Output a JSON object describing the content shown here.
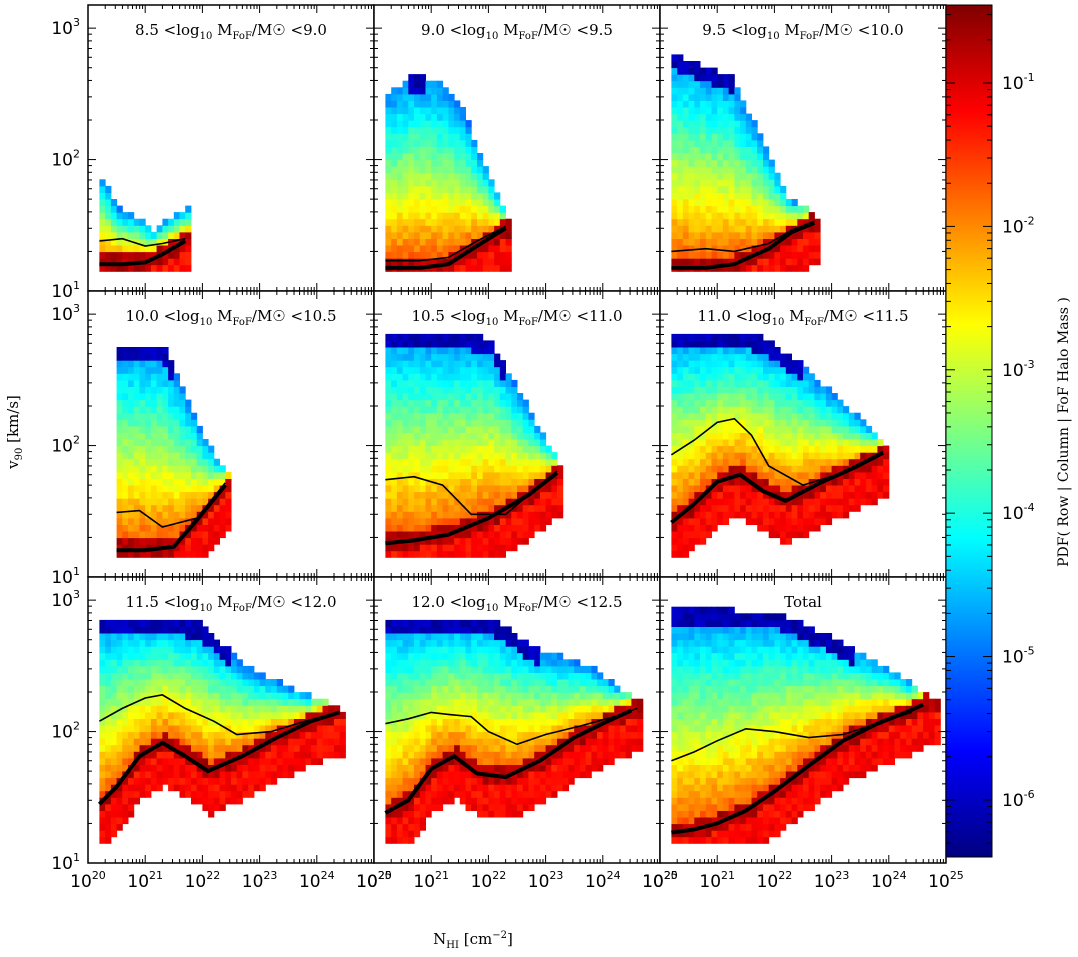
{
  "chart_data": {
    "type": "heatmap",
    "xlabel": "N_HI [cm^-2]",
    "ylabel": "v_90 [km/s]",
    "x_scale": "log",
    "y_scale": "log",
    "xlim": [
      1e+20,
      1e+25
    ],
    "ylim": [
      10,
      1500
    ],
    "x_tick_exponents": [
      20,
      21,
      22,
      23,
      24,
      25
    ],
    "y_tick_exponents": [
      1,
      2,
      3
    ],
    "colorbar": {
      "label": "PDF( Row | Column | FoF Halo Mass )",
      "scale": "log",
      "range": [
        4e-07,
        0.35
      ],
      "tick_exponents": [
        -6,
        -5,
        -4,
        -3,
        -2,
        -1
      ]
    },
    "panels": [
      {
        "title": "8.5 <log10 MFoF/M☉ <9.0",
        "title_main": "8.5 <log",
        "title_sub": "10",
        "title_rest": " M",
        "title_sub2": "FoF",
        "title_end": "/M☉ <9.0",
        "x_extent": [
          20.2,
          21.7
        ],
        "v_top": [
          70,
          40,
          35,
          28,
          35,
          40
        ],
        "median": [
          [
            20.2,
            16
          ],
          [
            20.6,
            16
          ],
          [
            21.0,
            16.5
          ],
          [
            21.3,
            19
          ],
          [
            21.7,
            24
          ]
        ],
        "upper": [
          [
            20.2,
            24
          ],
          [
            20.6,
            25
          ],
          [
            21.0,
            22
          ],
          [
            21.3,
            23
          ],
          [
            21.7,
            25
          ]
        ]
      },
      {
        "title": "9.0 <log10 MFoF/M☉ <9.5",
        "title_main": "9.0 <log",
        "title_sub": "10",
        "title_rest": " M",
        "title_sub2": "FoF",
        "title_end": "/M☉ <9.5",
        "x_extent": [
          20.2,
          22.3
        ],
        "v_top": [
          300,
          420,
          380,
          250,
          90,
          35
        ],
        "median": [
          [
            20.2,
            15
          ],
          [
            20.8,
            15
          ],
          [
            21.3,
            16
          ],
          [
            21.8,
            22
          ],
          [
            22.3,
            30
          ]
        ],
        "upper": [
          [
            20.2,
            17
          ],
          [
            20.8,
            17
          ],
          [
            21.3,
            18
          ],
          [
            21.8,
            24
          ],
          [
            22.3,
            31
          ]
        ]
      },
      {
        "title": "9.5 <log10 MFoF/M☉ <10.0",
        "title_main": "9.5 <log",
        "title_sub": "10",
        "title_rest": " M",
        "title_sub2": "FoF",
        "title_end": "/M☉ <10.0",
        "x_extent": [
          20.2,
          22.7
        ],
        "v_top": [
          600,
          500,
          400,
          150,
          50,
          35
        ],
        "median": [
          [
            20.2,
            15
          ],
          [
            20.8,
            15
          ],
          [
            21.3,
            16
          ],
          [
            21.9,
            21
          ],
          [
            22.3,
            28
          ],
          [
            22.7,
            33
          ]
        ],
        "upper": [
          [
            20.2,
            20
          ],
          [
            20.8,
            21
          ],
          [
            21.3,
            20
          ],
          [
            21.9,
            23
          ],
          [
            22.3,
            29
          ],
          [
            22.7,
            34
          ]
        ]
      },
      {
        "title": "10.0 <log10 MFoF/M☉ <10.5",
        "title_main": "10.0 <log",
        "title_sub": "10",
        "title_rest": " M",
        "title_sub2": "FoF",
        "title_end": "/M☉ <10.5",
        "x_extent": [
          20.5,
          22.4
        ],
        "v_top": [
          550,
          550,
          550,
          250,
          100,
          60
        ],
        "median": [
          [
            20.5,
            16
          ],
          [
            21.0,
            16
          ],
          [
            21.5,
            17
          ],
          [
            21.9,
            27
          ],
          [
            22.4,
            50
          ]
        ],
        "upper": [
          [
            20.5,
            31
          ],
          [
            20.9,
            32
          ],
          [
            21.3,
            24
          ],
          [
            21.9,
            28
          ],
          [
            22.4,
            52
          ]
        ]
      },
      {
        "title": "10.5 <log10 MFoF/M☉ <11.0",
        "title_main": "10.5 <log",
        "title_sub": "10",
        "title_rest": " M",
        "title_sub2": "FoF",
        "title_end": "/M☉ <11.0",
        "x_extent": [
          20.2,
          23.2
        ],
        "v_top": [
          700,
          700,
          700,
          600,
          200,
          70
        ],
        "median": [
          [
            20.2,
            18
          ],
          [
            20.7,
            19
          ],
          [
            21.3,
            21
          ],
          [
            22.0,
            28
          ],
          [
            22.7,
            42
          ],
          [
            23.2,
            62
          ]
        ],
        "upper": [
          [
            20.2,
            55
          ],
          [
            20.7,
            58
          ],
          [
            21.2,
            50
          ],
          [
            21.7,
            30
          ],
          [
            22.3,
            30
          ],
          [
            22.7,
            42
          ],
          [
            23.2,
            64
          ]
        ]
      },
      {
        "title": "11.0 <log10 MFoF/M☉ <11.5",
        "title_main": "11.0 <log",
        "title_sub": "10",
        "title_rest": " M",
        "title_sub2": "FoF",
        "title_end": "/M☉ <11.5",
        "x_extent": [
          20.2,
          23.9
        ],
        "v_top": [
          700,
          700,
          650,
          400,
          200,
          100
        ],
        "median": [
          [
            20.2,
            26
          ],
          [
            20.6,
            36
          ],
          [
            21.0,
            53
          ],
          [
            21.4,
            60
          ],
          [
            21.8,
            45
          ],
          [
            22.2,
            38
          ],
          [
            22.8,
            52
          ],
          [
            23.4,
            68
          ],
          [
            23.9,
            88
          ]
        ],
        "upper": [
          [
            20.2,
            85
          ],
          [
            20.6,
            110
          ],
          [
            21.0,
            150
          ],
          [
            21.3,
            160
          ],
          [
            21.6,
            120
          ],
          [
            21.9,
            70
          ],
          [
            22.5,
            50
          ],
          [
            23.1,
            60
          ],
          [
            23.9,
            90
          ]
        ]
      },
      {
        "title": "11.5 <log10 MFoF/M☉ <12.0",
        "title_main": "11.5 <log",
        "title_sub": "10",
        "title_rest": " M",
        "title_sub2": "FoF",
        "title_end": "/M☉ <12.0",
        "x_extent": [
          20.2,
          24.4
        ],
        "v_top": [
          700,
          700,
          650,
          300,
          200,
          140
        ],
        "median": [
          [
            20.2,
            28
          ],
          [
            20.5,
            38
          ],
          [
            20.9,
            65
          ],
          [
            21.3,
            82
          ],
          [
            21.7,
            65
          ],
          [
            22.1,
            50
          ],
          [
            22.7,
            65
          ],
          [
            23.3,
            90
          ],
          [
            23.9,
            120
          ],
          [
            24.4,
            140
          ]
        ],
        "upper": [
          [
            20.2,
            120
          ],
          [
            20.6,
            150
          ],
          [
            21.0,
            180
          ],
          [
            21.3,
            190
          ],
          [
            21.7,
            150
          ],
          [
            22.2,
            120
          ],
          [
            22.6,
            95
          ],
          [
            23.2,
            100
          ],
          [
            23.8,
            120
          ],
          [
            24.4,
            140
          ]
        ]
      },
      {
        "title": "12.0 <log10 MFoF/M☉ <12.5",
        "title_main": "12.0 <log",
        "title_sub": "10",
        "title_rest": " M",
        "title_sub2": "FoF",
        "title_end": "/M☉ <12.5",
        "x_extent": [
          20.2,
          24.6
        ],
        "v_top": [
          700,
          700,
          700,
          400,
          300,
          160
        ],
        "median": [
          [
            20.2,
            24
          ],
          [
            20.6,
            30
          ],
          [
            21.0,
            52
          ],
          [
            21.4,
            65
          ],
          [
            21.8,
            48
          ],
          [
            22.3,
            45
          ],
          [
            22.9,
            60
          ],
          [
            23.5,
            90
          ],
          [
            24.0,
            115
          ],
          [
            24.5,
            145
          ]
        ],
        "upper": [
          [
            20.2,
            115
          ],
          [
            20.6,
            125
          ],
          [
            21.0,
            140
          ],
          [
            21.3,
            135
          ],
          [
            21.7,
            130
          ],
          [
            22.0,
            100
          ],
          [
            22.5,
            80
          ],
          [
            23.0,
            95
          ],
          [
            23.6,
            110
          ],
          [
            24.2,
            130
          ],
          [
            24.6,
            150
          ]
        ]
      },
      {
        "title": "Total",
        "title_main": "Total",
        "title_sub": "",
        "title_rest": "",
        "title_sub2": "",
        "title_end": "",
        "x_extent": [
          20.2,
          24.8
        ],
        "v_top": [
          800,
          800,
          750,
          500,
          300,
          160
        ],
        "median": [
          [
            20.2,
            17
          ],
          [
            20.6,
            18
          ],
          [
            21.0,
            20
          ],
          [
            21.5,
            25
          ],
          [
            22.0,
            35
          ],
          [
            22.6,
            55
          ],
          [
            23.2,
            85
          ],
          [
            23.8,
            115
          ],
          [
            24.3,
            140
          ],
          [
            24.6,
            160
          ]
        ],
        "upper": [
          [
            20.2,
            60
          ],
          [
            20.6,
            70
          ],
          [
            21.0,
            85
          ],
          [
            21.5,
            105
          ],
          [
            22.0,
            100
          ],
          [
            22.6,
            90
          ],
          [
            23.2,
            95
          ],
          [
            23.8,
            115
          ],
          [
            24.4,
            140
          ]
        ]
      }
    ]
  }
}
